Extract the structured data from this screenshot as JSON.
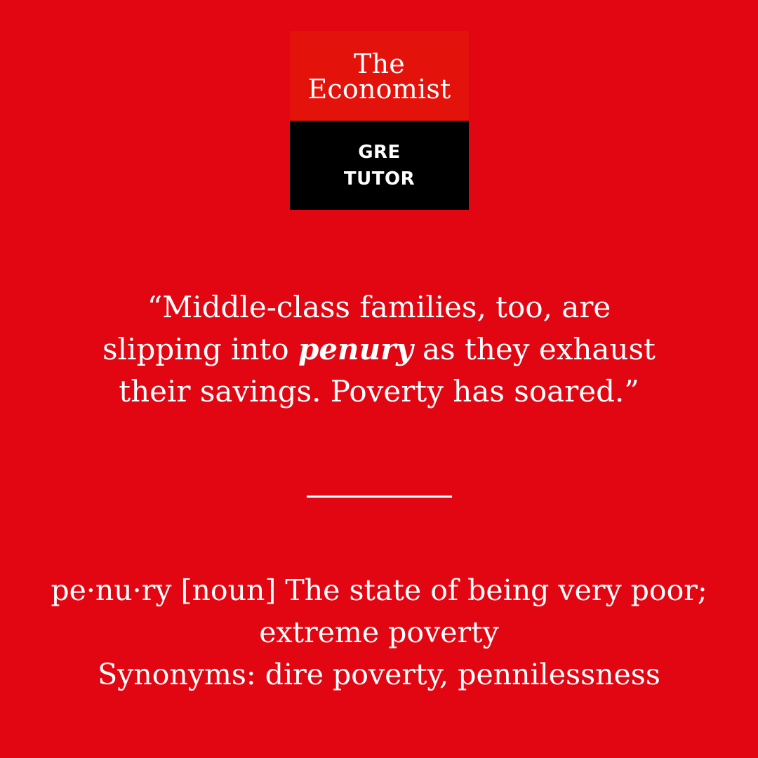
{
  "colors": {
    "background": "#e20613",
    "logo_top": "#e3120b",
    "logo_bottom": "#000000",
    "text": "#ffffff"
  },
  "logo": {
    "brand_line1": "The",
    "brand_line2": "Economist",
    "badge_line1": "GRE",
    "badge_line2": "TUTOR"
  },
  "quote": {
    "line1": "“Middle-class families, too, are",
    "line2_before": "slipping into ",
    "line2_term": "penury",
    "line2_after": " as they exhaust",
    "line3": "their savings. Poverty has soared.”"
  },
  "definition": {
    "line1": "pe·nu·ry [noun] The state of being very poor;",
    "line2": "extreme poverty",
    "line3": "Synonyms: dire poverty, pennilessness"
  }
}
